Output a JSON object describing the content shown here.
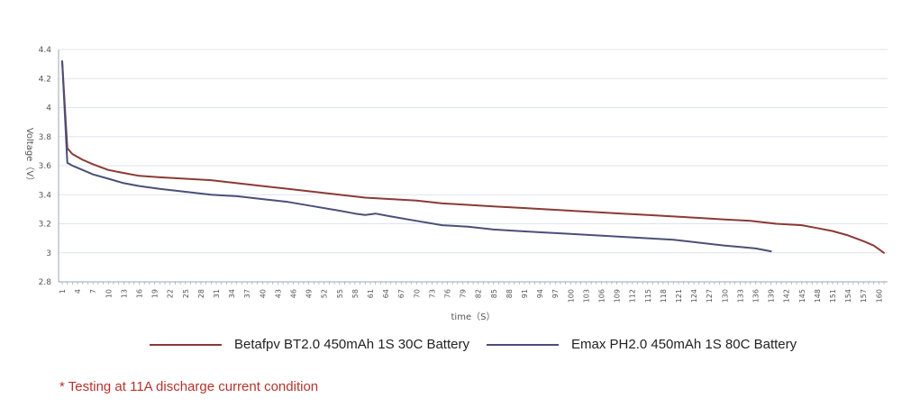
{
  "chart_data": {
    "type": "line",
    "xlabel": "time（S）",
    "ylabel": "Voltage（V）",
    "ylim": [
      2.8,
      4.4
    ],
    "yticks": [
      "2.8",
      "3",
      "3.2",
      "3.4",
      "3.6",
      "3.8",
      "4",
      "4.2",
      "4.4"
    ],
    "xlim": [
      1,
      161
    ],
    "xticks": [
      "1",
      "4",
      "7",
      "10",
      "13",
      "16",
      "19",
      "22",
      "25",
      "28",
      "31",
      "34",
      "37",
      "40",
      "43",
      "46",
      "49",
      "52",
      "55",
      "58",
      "61",
      "64",
      "67",
      "70",
      "73",
      "76",
      "79",
      "82",
      "85",
      "88",
      "91",
      "94",
      "97",
      "100",
      "103",
      "106",
      "109",
      "112",
      "115",
      "118",
      "121",
      "124",
      "127",
      "130",
      "133",
      "136",
      "139",
      "142",
      "145",
      "148",
      "151",
      "154",
      "157",
      "160"
    ],
    "grid": "horizontal",
    "legend_position": "bottom",
    "series": [
      {
        "name": "Betafpv BT2.0 450mAh 1S 30C Battery",
        "color": "#8b3a35",
        "x": [
          1,
          2,
          3,
          5,
          7,
          10,
          13,
          16,
          20,
          25,
          30,
          35,
          40,
          45,
          50,
          55,
          60,
          65,
          70,
          75,
          80,
          85,
          90,
          95,
          100,
          105,
          110,
          115,
          120,
          125,
          130,
          135,
          140,
          145,
          148,
          151,
          154,
          157,
          159,
          161
        ],
        "y": [
          4.32,
          3.72,
          3.68,
          3.64,
          3.61,
          3.57,
          3.55,
          3.53,
          3.52,
          3.51,
          3.5,
          3.48,
          3.46,
          3.44,
          3.42,
          3.4,
          3.38,
          3.37,
          3.36,
          3.34,
          3.33,
          3.32,
          3.31,
          3.3,
          3.29,
          3.28,
          3.27,
          3.26,
          3.25,
          3.24,
          3.23,
          3.22,
          3.2,
          3.19,
          3.17,
          3.15,
          3.12,
          3.08,
          3.05,
          3.0
        ]
      },
      {
        "name": "Emax PH2.0 450mAh 1S  80C Battery",
        "color": "#4a4f78",
        "x": [
          1,
          2,
          3,
          5,
          7,
          10,
          13,
          16,
          20,
          25,
          30,
          35,
          40,
          45,
          50,
          55,
          58,
          60,
          62,
          65,
          70,
          75,
          80,
          85,
          90,
          95,
          100,
          105,
          110,
          115,
          120,
          125,
          130,
          133,
          136,
          139
        ],
        "y": [
          4.32,
          3.62,
          3.6,
          3.57,
          3.54,
          3.51,
          3.48,
          3.46,
          3.44,
          3.42,
          3.4,
          3.39,
          3.37,
          3.35,
          3.32,
          3.29,
          3.27,
          3.26,
          3.27,
          3.25,
          3.22,
          3.19,
          3.18,
          3.16,
          3.15,
          3.14,
          3.13,
          3.12,
          3.11,
          3.1,
          3.09,
          3.07,
          3.05,
          3.04,
          3.03,
          3.01
        ]
      }
    ]
  },
  "note": "* Testing at 11A discharge current condition"
}
